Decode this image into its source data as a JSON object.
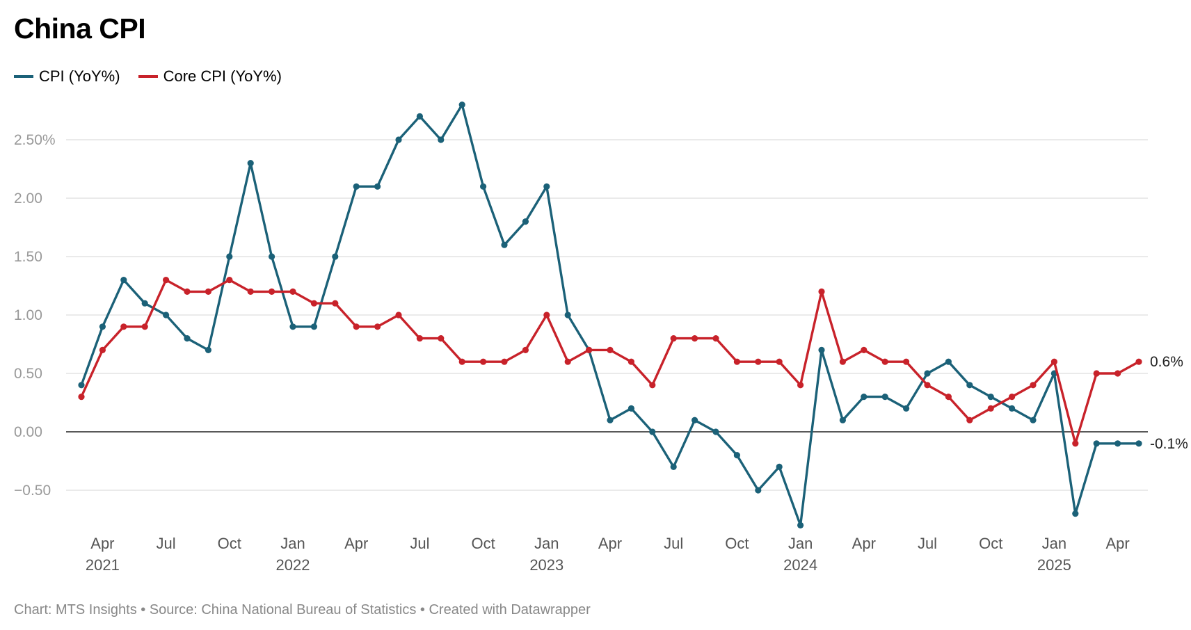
{
  "title": "China CPI",
  "footer": "Chart: MTS Insights • Source: China National Bureau of Statistics • Created with Datawrapper",
  "colors": {
    "cpi": "#1b6178",
    "core": "#c8222a",
    "grid": "#dddddd",
    "axis_text": "#999999",
    "zero": "#222222"
  },
  "chart_data": {
    "type": "line",
    "title": "China CPI",
    "x": [
      "2021-03",
      "2021-04",
      "2021-05",
      "2021-06",
      "2021-07",
      "2021-08",
      "2021-09",
      "2021-10",
      "2021-11",
      "2021-12",
      "2022-01",
      "2022-02",
      "2022-03",
      "2022-04",
      "2022-05",
      "2022-06",
      "2022-07",
      "2022-08",
      "2022-09",
      "2022-10",
      "2022-11",
      "2022-12",
      "2023-01",
      "2023-02",
      "2023-03",
      "2023-04",
      "2023-05",
      "2023-06",
      "2023-07",
      "2023-08",
      "2023-09",
      "2023-10",
      "2023-11",
      "2023-12",
      "2024-01",
      "2024-02",
      "2024-03",
      "2024-04",
      "2024-05",
      "2024-06",
      "2024-07",
      "2024-08",
      "2024-09",
      "2024-10",
      "2024-11",
      "2024-12",
      "2025-01",
      "2025-02",
      "2025-03",
      "2025-04",
      "2025-05"
    ],
    "series": [
      {
        "name": "CPI (YoY%)",
        "color": "#1b6178",
        "values": [
          0.4,
          0.9,
          1.3,
          1.1,
          1.0,
          0.8,
          0.7,
          1.5,
          2.3,
          1.5,
          0.9,
          0.9,
          1.5,
          2.1,
          2.1,
          2.5,
          2.7,
          2.5,
          2.8,
          2.1,
          1.6,
          1.8,
          2.1,
          1.0,
          0.7,
          0.1,
          0.2,
          0.0,
          -0.3,
          0.1,
          0.0,
          -0.2,
          -0.5,
          -0.3,
          -0.8,
          0.7,
          0.1,
          0.3,
          0.3,
          0.2,
          0.5,
          0.6,
          0.4,
          0.3,
          0.2,
          0.1,
          0.5,
          -0.7,
          -0.1,
          -0.1,
          -0.1
        ],
        "end_label": "-0.1%"
      },
      {
        "name": "Core CPI (YoY%)",
        "color": "#c8222a",
        "values": [
          0.3,
          0.7,
          0.9,
          0.9,
          1.3,
          1.2,
          1.2,
          1.3,
          1.2,
          1.2,
          1.2,
          1.1,
          1.1,
          0.9,
          0.9,
          1.0,
          0.8,
          0.8,
          0.6,
          0.6,
          0.6,
          0.7,
          1.0,
          0.6,
          0.7,
          0.7,
          0.6,
          0.4,
          0.8,
          0.8,
          0.8,
          0.6,
          0.6,
          0.6,
          0.4,
          1.2,
          0.6,
          0.7,
          0.6,
          0.6,
          0.4,
          0.3,
          0.1,
          0.2,
          0.3,
          0.4,
          0.6,
          -0.1,
          0.5,
          0.5,
          0.6
        ],
        "end_label": "0.6%"
      }
    ],
    "yticks": [
      {
        "value": 2.5,
        "label": "2.50%"
      },
      {
        "value": 2.0,
        "label": "2.00"
      },
      {
        "value": 1.5,
        "label": "1.50"
      },
      {
        "value": 1.0,
        "label": "1.00"
      },
      {
        "value": 0.5,
        "label": "0.50"
      },
      {
        "value": 0.0,
        "label": "0.00"
      },
      {
        "value": -0.5,
        "label": "−0.50"
      }
    ],
    "xticks": [
      {
        "index": 1,
        "label": "Apr",
        "year": "2021"
      },
      {
        "index": 4,
        "label": "Jul"
      },
      {
        "index": 7,
        "label": "Oct"
      },
      {
        "index": 10,
        "label": "Jan",
        "year": "2022"
      },
      {
        "index": 13,
        "label": "Apr"
      },
      {
        "index": 16,
        "label": "Jul"
      },
      {
        "index": 19,
        "label": "Oct"
      },
      {
        "index": 22,
        "label": "Jan",
        "year": "2023"
      },
      {
        "index": 25,
        "label": "Apr"
      },
      {
        "index": 28,
        "label": "Jul"
      },
      {
        "index": 31,
        "label": "Oct"
      },
      {
        "index": 34,
        "label": "Jan",
        "year": "2024"
      },
      {
        "index": 37,
        "label": "Apr"
      },
      {
        "index": 40,
        "label": "Jul"
      },
      {
        "index": 43,
        "label": "Oct"
      },
      {
        "index": 46,
        "label": "Jan",
        "year": "2025"
      },
      {
        "index": 49,
        "label": "Apr"
      }
    ],
    "ylim": [
      -0.8,
      2.8
    ],
    "grid": true,
    "legend": "top-left"
  }
}
